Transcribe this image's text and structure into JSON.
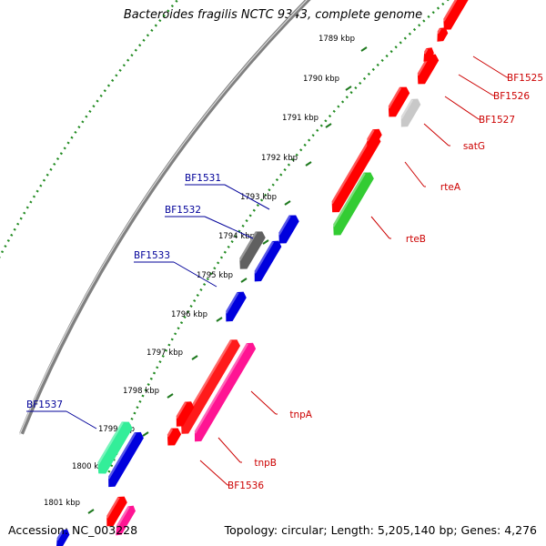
{
  "title": "Bacteroides fragilis NCTC 9343, complete genome",
  "accession": "Accession: NC_003228",
  "stats": "Topology: circular; Length: 5,205,140 bp; Genes: 4,276",
  "colors": {
    "backbone": "#808080",
    "tick_dots": "#228b22",
    "label_forward": "#cc0000",
    "label_reverse": "#000099"
  },
  "ticks": [
    "1789 kbp",
    "1790 kbp",
    "1791 kbp",
    "1792 kbp",
    "1793 kbp",
    "1794 kbp",
    "1795 kbp",
    "1796 kbp",
    "1797 kbp",
    "1798 kbp",
    "1799 kbp",
    "1800 kbp",
    "1801 kbp"
  ],
  "forward_genes": [
    {
      "label": "BF1525",
      "color": "#ff0000"
    },
    {
      "label": "BF1526",
      "color": "#ff0000"
    },
    {
      "label": "BF1527",
      "color": "#ff0000"
    },
    {
      "label": "satG",
      "color": "#c8c8c8"
    },
    {
      "label": "rteA",
      "color": "#ff0000"
    },
    {
      "label": "rteB",
      "color": "#33cc33"
    },
    {
      "label": "tnpA",
      "color": "#ff1a1a"
    },
    {
      "label": "tnpB",
      "color": "#ff1493"
    },
    {
      "label": "BF1536",
      "color": "#ff0000"
    }
  ],
  "reverse_genes": [
    {
      "label": "BF1531",
      "color": "#0000dd"
    },
    {
      "label": "BF1532",
      "color": "#606060"
    },
    {
      "label": "BF1533",
      "color": "#0000dd"
    },
    {
      "label": "BF1537",
      "color": "#33ee99"
    }
  ]
}
